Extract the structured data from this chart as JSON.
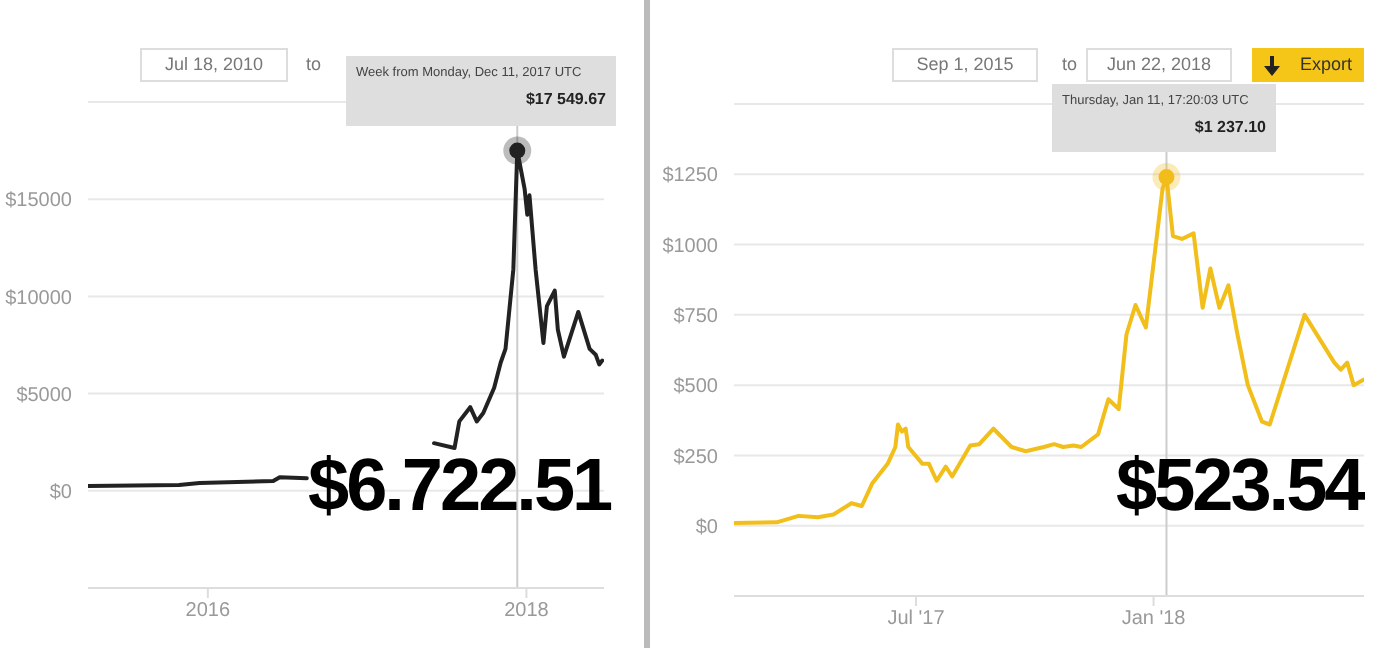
{
  "chart_data": [
    {
      "type": "line",
      "color": "#222222",
      "grid": "y",
      "marker": "none",
      "line_style": "solid",
      "x": [
        "2015-04-01",
        "2015-10-27",
        "2015-12-13",
        "2016-05-30",
        "2016-06-14",
        "2016-08-15",
        "2017-01-01",
        "2017-06-03",
        "2017-07-20",
        "2017-07-31",
        "2017-08-25",
        "2017-09-09",
        "2017-09-24",
        "2017-10-19",
        "2017-11-03",
        "2017-11-14",
        "2017-12-02",
        "2017-12-11",
        "2017-12-28",
        "2018-01-03",
        "2018-01-08",
        "2018-01-22",
        "2018-02-09",
        "2018-02-17",
        "2018-03-07",
        "2018-03-14",
        "2018-03-28",
        "2018-04-30",
        "2018-05-26",
        "2018-06-09",
        "2018-06-17",
        "2018-06-24"
      ],
      "values": [
        250,
        300,
        400,
        500,
        700,
        650,
        null,
        2450,
        2200,
        3570,
        4300,
        3570,
        4000,
        5300,
        6600,
        7300,
        11400,
        17500,
        15500,
        14200,
        15200,
        11400,
        7600,
        9500,
        10300,
        8300,
        6900,
        9200,
        7300,
        7000,
        6500,
        6700
      ],
      "xlim": [
        "2015-04-01",
        "2018-06-28"
      ],
      "xticks": [
        "2016",
        "2018"
      ],
      "ylim": [
        -5000,
        20000
      ],
      "yticks": [
        {
          "value": 0,
          "label": "$0"
        },
        {
          "value": 5000,
          "label": "$5000"
        },
        {
          "value": 10000,
          "label": "$10000"
        },
        {
          "value": 15000,
          "label": "$15000"
        },
        {
          "value": 20000,
          "label": null
        }
      ],
      "ref_lines": [
        {
          "axis": "x",
          "value": "2017-12-11",
          "color": "#cccccc"
        }
      ],
      "annotations": [
        "Jul 18, 2010",
        "to",
        "Week from Monday, Dec 11, 2017 UTC",
        "$17 549.67",
        "$6.722.51"
      ]
    },
    {
      "type": "line",
      "color": "#f2be1a",
      "grid": "y",
      "marker": "none",
      "line_style": "solid",
      "x": [
        "2017-02-10",
        "2017-03-15",
        "2017-04-01",
        "2017-04-16",
        "2017-04-28",
        "2017-05-12",
        "2017-05-20",
        "2017-05-28",
        "2017-06-09",
        "2017-06-15",
        "2017-06-17",
        "2017-06-20",
        "2017-06-23",
        "2017-06-25",
        "2017-07-06",
        "2017-07-11",
        "2017-07-17",
        "2017-07-24",
        "2017-07-29",
        "2017-08-12",
        "2017-08-19",
        "2017-08-30",
        "2017-09-13",
        "2017-09-24",
        "2017-10-08",
        "2017-10-16",
        "2017-10-23",
        "2017-10-31",
        "2017-11-06",
        "2017-11-19",
        "2017-11-27",
        "2017-12-05",
        "2017-12-11",
        "2017-12-18",
        "2017-12-26",
        "2018-01-08",
        "2018-01-11",
        "2018-01-16",
        "2018-01-23",
        "2018-02-01",
        "2018-02-08",
        "2018-02-14",
        "2018-02-21",
        "2018-02-28",
        "2018-03-07",
        "2018-03-15",
        "2018-03-26",
        "2018-04-01",
        "2018-04-28",
        "2018-05-21",
        "2018-05-26",
        "2018-05-31",
        "2018-06-05",
        "2018-06-13"
      ],
      "values": [
        10,
        12,
        35,
        30,
        40,
        80,
        70,
        150,
        220,
        280,
        360,
        335,
        345,
        280,
        220,
        220,
        160,
        210,
        175,
        285,
        290,
        345,
        280,
        265,
        280,
        290,
        280,
        285,
        280,
        325,
        450,
        415,
        680,
        785,
        705,
        1200,
        1240,
        1030,
        1020,
        1040,
        775,
        915,
        775,
        855,
        680,
        500,
        370,
        360,
        750,
        580,
        555,
        580,
        500,
        520
      ],
      "xlim": [
        "2017-02-10",
        "2018-06-13"
      ],
      "xticks": [
        {
          "value": "2017-07-01",
          "label": "Jul '17"
        },
        {
          "value": "2018-01-01",
          "label": "Jan '18"
        }
      ],
      "ylim": [
        -250,
        1500
      ],
      "yticks": [
        {
          "value": 0,
          "label": "$0"
        },
        {
          "value": 250,
          "label": "$250"
        },
        {
          "value": 500,
          "label": "$500"
        },
        {
          "value": 750,
          "label": "$750"
        },
        {
          "value": 1000,
          "label": "$1000"
        },
        {
          "value": 1250,
          "label": "$1250"
        },
        {
          "value": 1500,
          "label": null
        }
      ],
      "ref_lines": [
        {
          "axis": "x",
          "value": "2018-01-11",
          "color": "#cccccc"
        }
      ],
      "annotations": [
        "Sep 1, 2015",
        "to",
        "Jun 22, 2018",
        "Export",
        "Thursday, Jan 11, 17:20:03 UTC",
        "$1 237.10",
        "$523.54"
      ]
    }
  ]
}
